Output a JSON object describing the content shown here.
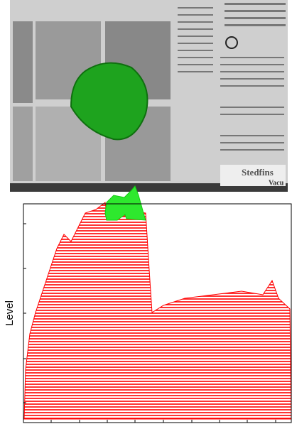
{
  "figure": {
    "y_label": "Level",
    "photo_texts": [
      "Stedfins",
      "Vacu"
    ]
  }
}
